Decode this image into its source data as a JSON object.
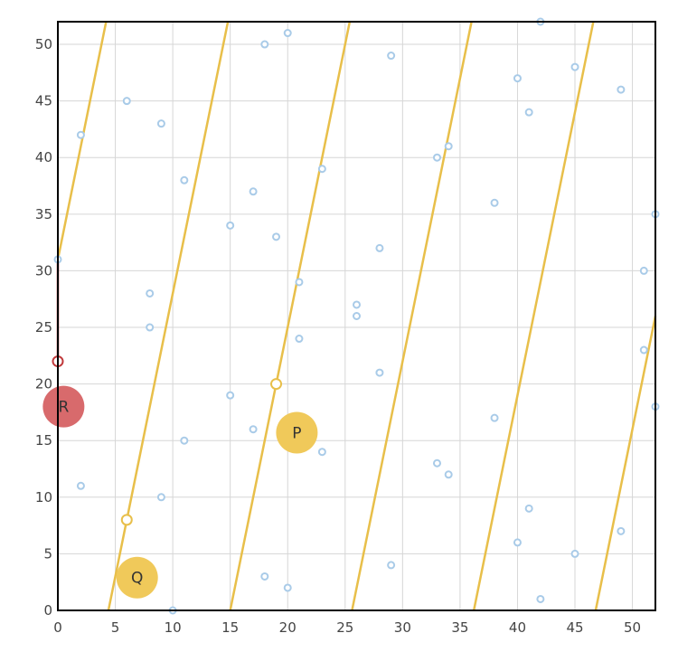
{
  "chart_data": {
    "type": "scatter",
    "title": "",
    "xlabel": "",
    "ylabel": "",
    "xlim": [
      0,
      52
    ],
    "ylim": [
      0,
      52
    ],
    "grid": true,
    "x_ticks": [
      0,
      5,
      10,
      15,
      20,
      25,
      30,
      35,
      40,
      45,
      50
    ],
    "y_ticks": [
      0,
      5,
      10,
      15,
      20,
      25,
      30,
      35,
      40,
      45,
      50
    ],
    "colors": {
      "points": "#a9cbe8",
      "lines": "#e8bf4a",
      "red": "#c0393b",
      "red_fill": "#d86a6c",
      "yellow_fill": "#f0c95a",
      "grid": "#d6d6d6",
      "axis": "#000000"
    },
    "points": [
      [
        2,
        42
      ],
      [
        6,
        45
      ],
      [
        9,
        43
      ],
      [
        11,
        38
      ],
      [
        18,
        50
      ],
      [
        20,
        51
      ],
      [
        29,
        49
      ],
      [
        42,
        52
      ],
      [
        40,
        47
      ],
      [
        45,
        48
      ],
      [
        49,
        46
      ],
      [
        41,
        44
      ],
      [
        33,
        40
      ],
      [
        34,
        41
      ],
      [
        23,
        39
      ],
      [
        17,
        37
      ],
      [
        15,
        34
      ],
      [
        19,
        33
      ],
      [
        38,
        36
      ],
      [
        52,
        35
      ],
      [
        28,
        32
      ],
      [
        0,
        31
      ],
      [
        51,
        30
      ],
      [
        8,
        28
      ],
      [
        21,
        29
      ],
      [
        26,
        27
      ],
      [
        26,
        26
      ],
      [
        8,
        25
      ],
      [
        21,
        24
      ],
      [
        51,
        23
      ],
      [
        28,
        21
      ],
      [
        15,
        19
      ],
      [
        52,
        18
      ],
      [
        38,
        17
      ],
      [
        17,
        16
      ],
      [
        11,
        15
      ],
      [
        23,
        14
      ],
      [
        33,
        13
      ],
      [
        34,
        12
      ],
      [
        2,
        11
      ],
      [
        9,
        10
      ],
      [
        41,
        9
      ],
      [
        49,
        7
      ],
      [
        40,
        6
      ],
      [
        45,
        5
      ],
      [
        29,
        4
      ],
      [
        18,
        3
      ],
      [
        20,
        2
      ],
      [
        42,
        1
      ],
      [
        10,
        0
      ]
    ],
    "lines": [
      {
        "name": "wrap-line-1",
        "from": [
          0,
          31
        ],
        "to": [
          4.2,
          52
        ]
      },
      {
        "name": "wrap-line-2",
        "from": [
          4.4,
          0
        ],
        "to": [
          14.8,
          52
        ]
      },
      {
        "name": "wrap-line-3",
        "from": [
          15.0,
          0
        ],
        "to": [
          25.4,
          52
        ]
      },
      {
        "name": "wrap-line-4",
        "from": [
          25.6,
          0
        ],
        "to": [
          36.0,
          52
        ]
      },
      {
        "name": "wrap-line-5",
        "from": [
          36.2,
          0
        ],
        "to": [
          46.6,
          52
        ]
      },
      {
        "name": "wrap-line-6",
        "from": [
          46.8,
          0
        ],
        "to": [
          52,
          26
        ]
      }
    ],
    "red_segment": {
      "from": [
        0,
        31
      ],
      "to": [
        0,
        22
      ]
    },
    "markers": [
      {
        "name": "yellow-marker-1",
        "at": [
          6,
          8
        ],
        "color": "yellow"
      },
      {
        "name": "yellow-marker-2",
        "at": [
          19,
          20
        ],
        "color": "yellow"
      },
      {
        "name": "red-marker",
        "at": [
          0,
          22
        ],
        "color": "red"
      }
    ],
    "labels": [
      {
        "text": "R",
        "at": [
          0.5,
          18
        ],
        "color": "red"
      },
      {
        "text": "P",
        "at": [
          20.8,
          15.7
        ],
        "color": "yellow"
      },
      {
        "text": "Q",
        "at": [
          6.9,
          2.9
        ],
        "color": "yellow"
      }
    ]
  }
}
